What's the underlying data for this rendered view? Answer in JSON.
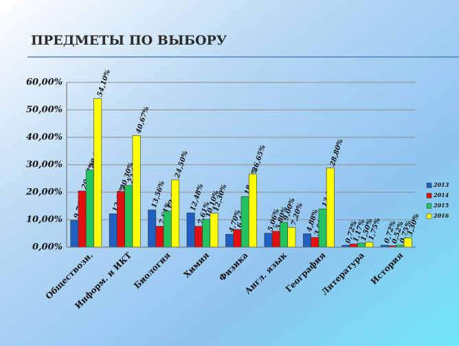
{
  "chart_data": {
    "type": "bar",
    "title": "ПРЕДМЕТЫ ПО ВЫБОРУ",
    "categories": [
      "Обществозн.",
      "Информ. и ИКТ",
      "Биология",
      "Химия",
      "Физика",
      "Англ. язык",
      "География",
      "Литература",
      "История"
    ],
    "series": [
      {
        "name": "2013",
        "color": "#1f5fbf",
        "values": [
          9.76,
          12.17,
          13.56,
          12.48,
          4.7,
          5.06,
          4.88,
          0.72,
          0.72
        ],
        "value_labels": [
          "9,76%",
          "12,17%",
          "13,56%",
          "12,48%",
          "4,70%",
          "5,06%",
          "4,88%",
          "0,72%",
          "0,72%"
        ]
      },
      {
        "name": "2014",
        "color": "#e01010",
        "values": [
          20.47,
          20.3,
          7.61,
          7.61,
          6.43,
          5.8,
          3.55,
          1.17,
          0.52
        ],
        "value_labels": [
          "20,47%",
          "20,30%",
          "7,61%",
          "7,61%",
          "6,43%",
          "5,80%",
          "3,55%",
          "1,17%",
          "0,52%"
        ]
      },
      {
        "name": "2015",
        "color": "#22c25e",
        "values": [
          28.1,
          22.5,
          13.1,
          10.1,
          18.4,
          9.0,
          13.9,
          1.5,
          0.75
        ],
        "value_labels": [
          "28,10%",
          "22,50%",
          "13,10%",
          "10,10%",
          "18,40%",
          "9,00%",
          "13,90%",
          "1,50%",
          "0,75%"
        ]
      },
      {
        "name": "2016",
        "color": "#ffff00",
        "values": [
          54.1,
          40.67,
          24.5,
          12.3,
          26.65,
          7.2,
          28.8,
          1.75,
          3.3
        ],
        "value_labels": [
          "54,10%",
          "40,67%",
          "24,50%",
          "12,30%",
          "26,65%",
          "7,20%",
          "28,80%",
          "1,75%",
          "3,30%"
        ]
      }
    ],
    "ylim": [
      0,
      60
    ],
    "yticks": [
      {
        "value": 0,
        "label": "0,00%"
      },
      {
        "value": 10,
        "label": "10,00%"
      },
      {
        "value": 20,
        "label": "20,00%"
      },
      {
        "value": 30,
        "label": "30,00%"
      },
      {
        "value": 40,
        "label": "40,00%"
      },
      {
        "value": 50,
        "label": "50,00%"
      },
      {
        "value": 60,
        "label": "60,00%"
      }
    ],
    "grid": true,
    "legend": "right"
  }
}
